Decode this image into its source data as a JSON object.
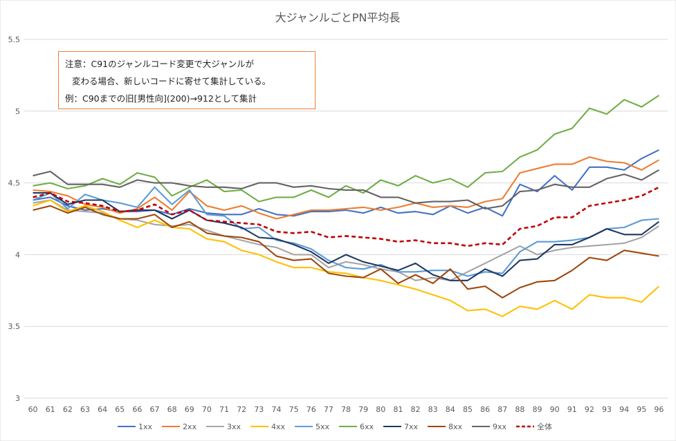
{
  "chart_data": {
    "type": "line",
    "title": "大ジャンルごとPN平均長",
    "xlabel": "",
    "ylabel": "",
    "ylim": [
      3,
      5.5
    ],
    "yticks": [
      "3",
      "3.5",
      "4",
      "4.5",
      "5",
      "5.5"
    ],
    "grid": true,
    "legend_position": "bottom",
    "categories": [
      "60",
      "61",
      "62",
      "63",
      "64",
      "65",
      "66",
      "67",
      "68",
      "69",
      "70",
      "71",
      "72",
      "73",
      "74",
      "75",
      "76",
      "77",
      "78",
      "79",
      "80",
      "81",
      "82",
      "83",
      "84",
      "85",
      "86",
      "87",
      "88",
      "89",
      "90",
      "91",
      "92",
      "93",
      "94",
      "95",
      "96"
    ],
    "annotation": [
      "注意：C91のジャンルコード変更で大ジャンルが",
      "変わる場合、新しいコードに寄せて集計している。",
      "例：C90までの旧[男性向](200)→912として集計"
    ],
    "series": [
      {
        "name": "1xx",
        "color": "#4472C4",
        "dashed": false,
        "values": [
          4.38,
          4.4,
          4.34,
          4.31,
          4.32,
          4.3,
          4.3,
          4.31,
          4.28,
          4.32,
          4.29,
          4.28,
          4.28,
          4.32,
          4.28,
          4.27,
          4.3,
          4.3,
          4.31,
          4.29,
          4.33,
          4.29,
          4.3,
          4.28,
          4.34,
          4.29,
          4.33,
          4.27,
          4.49,
          4.44,
          4.55,
          4.45,
          4.61,
          4.61,
          4.59,
          4.67,
          4.73
        ]
      },
      {
        "name": "2xx",
        "color": "#ED7D31",
        "dashed": false,
        "values": [
          4.45,
          4.44,
          4.41,
          4.35,
          4.33,
          4.29,
          4.32,
          4.4,
          4.31,
          4.44,
          4.34,
          4.31,
          4.34,
          4.29,
          4.25,
          4.28,
          4.31,
          4.31,
          4.32,
          4.33,
          4.31,
          4.33,
          4.36,
          4.33,
          4.34,
          4.33,
          4.37,
          4.39,
          4.57,
          4.6,
          4.63,
          4.63,
          4.68,
          4.65,
          4.64,
          4.59,
          4.66
        ]
      },
      {
        "name": "3xx",
        "color": "#A5A5A5",
        "dashed": false,
        "values": [
          4.36,
          4.38,
          4.31,
          4.3,
          4.29,
          4.25,
          4.24,
          4.21,
          4.2,
          4.21,
          4.17,
          4.13,
          4.1,
          4.07,
          4.05,
          4.0,
          4.0,
          3.91,
          3.95,
          3.93,
          3.9,
          3.88,
          3.82,
          3.84,
          3.82,
          3.88,
          3.94,
          4.0,
          4.06,
          4.0,
          4.03,
          4.05,
          4.06,
          4.07,
          4.08,
          4.12,
          4.2
        ]
      },
      {
        "name": "4xx",
        "color": "#FFC000",
        "dashed": false,
        "values": [
          4.34,
          4.38,
          4.3,
          4.34,
          4.3,
          4.24,
          4.19,
          4.24,
          4.19,
          4.18,
          4.11,
          4.09,
          4.03,
          4.0,
          3.95,
          3.91,
          3.91,
          3.88,
          3.87,
          3.84,
          3.82,
          3.79,
          3.76,
          3.72,
          3.68,
          3.61,
          3.62,
          3.57,
          3.64,
          3.62,
          3.68,
          3.62,
          3.72,
          3.7,
          3.7,
          3.67,
          3.78
        ]
      },
      {
        "name": "5xx",
        "color": "#5B9BD5",
        "dashed": false,
        "values": [
          4.38,
          4.43,
          4.32,
          4.42,
          4.38,
          4.36,
          4.33,
          4.47,
          4.35,
          4.45,
          4.28,
          4.27,
          4.18,
          4.19,
          4.1,
          4.08,
          4.04,
          3.96,
          3.91,
          3.9,
          3.93,
          3.88,
          3.88,
          3.89,
          3.89,
          3.85,
          3.88,
          3.87,
          4.02,
          4.09,
          4.09,
          4.1,
          4.12,
          4.18,
          4.19,
          4.24,
          4.25
        ]
      },
      {
        "name": "6xx",
        "color": "#70AD47",
        "dashed": false,
        "values": [
          4.48,
          4.5,
          4.46,
          4.48,
          4.53,
          4.49,
          4.57,
          4.54,
          4.41,
          4.47,
          4.52,
          4.44,
          4.45,
          4.37,
          4.4,
          4.4,
          4.45,
          4.4,
          4.48,
          4.43,
          4.52,
          4.48,
          4.55,
          4.5,
          4.53,
          4.47,
          4.57,
          4.58,
          4.68,
          4.73,
          4.84,
          4.88,
          5.02,
          4.98,
          5.08,
          5.03,
          5.11
        ]
      },
      {
        "name": "7xx",
        "color": "#1F3864",
        "dashed": false,
        "values": [
          4.43,
          4.43,
          4.35,
          4.38,
          4.38,
          4.3,
          4.31,
          4.31,
          4.25,
          4.31,
          4.24,
          4.22,
          4.19,
          4.12,
          4.11,
          4.07,
          4.02,
          3.94,
          4.0,
          3.95,
          3.92,
          3.89,
          3.94,
          3.86,
          3.82,
          3.82,
          3.9,
          3.85,
          3.96,
          3.97,
          4.07,
          4.07,
          4.12,
          4.18,
          4.14,
          4.14,
          4.23
        ]
      },
      {
        "name": "8xx",
        "color": "#9E480E",
        "dashed": false,
        "values": [
          4.31,
          4.34,
          4.29,
          4.33,
          4.28,
          4.25,
          4.25,
          4.28,
          4.19,
          4.23,
          4.15,
          4.13,
          4.12,
          4.09,
          3.99,
          3.96,
          3.97,
          3.87,
          3.85,
          3.84,
          3.9,
          3.8,
          3.86,
          3.8,
          3.9,
          3.76,
          3.78,
          3.7,
          3.77,
          3.81,
          3.82,
          3.89,
          3.98,
          3.96,
          4.03,
          4.01,
          3.99
        ]
      },
      {
        "name": "9xx",
        "color": "#636363",
        "dashed": false,
        "values": [
          4.55,
          4.58,
          4.49,
          4.49,
          4.49,
          4.47,
          4.52,
          4.5,
          4.5,
          4.48,
          4.47,
          4.47,
          4.46,
          4.5,
          4.5,
          4.47,
          4.48,
          4.46,
          4.45,
          4.45,
          4.4,
          4.4,
          4.36,
          4.37,
          4.37,
          4.38,
          4.32,
          4.34,
          4.44,
          4.45,
          4.49,
          4.47,
          4.47,
          4.53,
          4.56,
          4.52,
          4.59
        ]
      },
      {
        "name": "全体",
        "color": "#C00000",
        "dashed": true,
        "values": [
          4.4,
          4.43,
          4.37,
          4.36,
          4.34,
          4.3,
          4.31,
          4.35,
          4.28,
          4.31,
          4.24,
          4.23,
          4.22,
          4.21,
          4.16,
          4.15,
          4.16,
          4.12,
          4.13,
          4.12,
          4.11,
          4.09,
          4.1,
          4.08,
          4.08,
          4.06,
          4.08,
          4.07,
          4.18,
          4.2,
          4.26,
          4.26,
          4.34,
          4.36,
          4.38,
          4.41,
          4.47
        ]
      }
    ]
  }
}
